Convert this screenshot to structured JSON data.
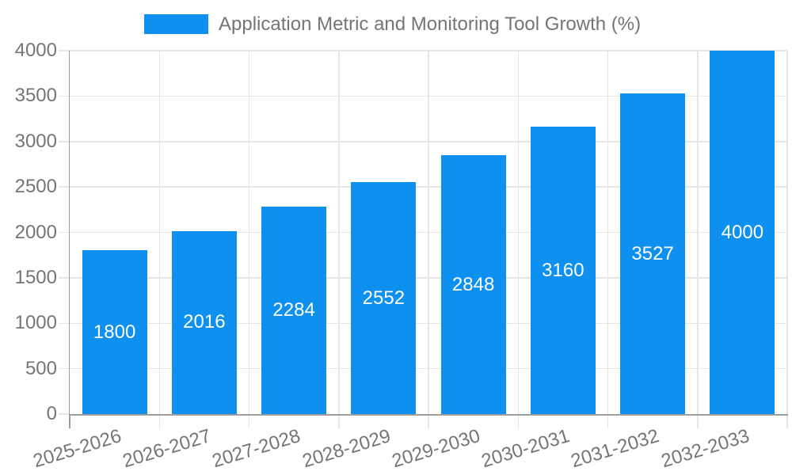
{
  "chart_data": {
    "type": "bar",
    "title": "Application Metric and Monitoring Tool Growth (%)",
    "categories": [
      "2025-2026",
      "2026-2027",
      "2027-2028",
      "2028-2029",
      "2029-2030",
      "2030-2031",
      "2031-2032",
      "2032-2033"
    ],
    "values": [
      1800,
      2016,
      2284,
      2552,
      2848,
      3160,
      3527,
      4000
    ],
    "yticks": [
      0,
      500,
      1000,
      1500,
      2000,
      2500,
      3000,
      3500,
      4000
    ],
    "ylim": [
      0,
      4000
    ],
    "xlabel": "",
    "ylabel": "",
    "grid": true,
    "legend_position": "top",
    "value_labels_inside_bars": true
  },
  "colors": {
    "bar": "#0e90f0",
    "grid": "#e6e6e6",
    "axis": "#9e9e9e",
    "text": "#757575",
    "value_text": "#ffffff",
    "background": "#ffffff"
  }
}
